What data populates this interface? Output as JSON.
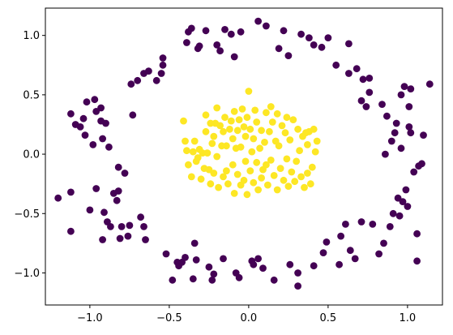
{
  "chart_data": {
    "type": "scatter",
    "title": "",
    "xlabel": "",
    "ylabel": "",
    "xlim": [
      -1.28,
      1.22
    ],
    "ylim": [
      -1.27,
      1.23
    ],
    "xticks": [
      -1.0,
      -0.5,
      0.0,
      0.5,
      1.0
    ],
    "yticks": [
      -1.0,
      -0.5,
      0.0,
      0.5,
      1.0
    ],
    "x_tick_labels": [
      "−1.0",
      "−0.5",
      "0.0",
      "0.5",
      "1.0"
    ],
    "y_tick_labels": [
      "−1.0",
      "−0.5",
      "0.0",
      "0.5",
      "1.0"
    ],
    "grid": false,
    "legend": "none",
    "colors": {
      "outer": "#440154",
      "inner": "#fde725"
    },
    "series": [
      {
        "color": "#440154",
        "points": [
          [
            -1.2,
            -0.37
          ],
          [
            -1.12,
            -0.65
          ],
          [
            -1.12,
            -0.32
          ],
          [
            -1.12,
            0.34
          ],
          [
            -1.09,
            0.25
          ],
          [
            -1.06,
            0.23
          ],
          [
            -1.04,
            0.3
          ],
          [
            -1.03,
            0.16
          ],
          [
            -1.02,
            0.44
          ],
          [
            -1.0,
            -0.47
          ],
          [
            -0.98,
            0.08
          ],
          [
            -0.97,
            0.46
          ],
          [
            -0.96,
            0.36
          ],
          [
            -0.96,
            -0.29
          ],
          [
            -0.93,
            0.28
          ],
          [
            -0.93,
            0.39
          ],
          [
            -0.92,
            -0.72
          ],
          [
            -0.92,
            0.13
          ],
          [
            -0.91,
            -0.49
          ],
          [
            -0.9,
            0.26
          ],
          [
            -0.89,
            -0.57
          ],
          [
            -0.88,
            0.06
          ],
          [
            -0.87,
            -0.61
          ],
          [
            -0.85,
            -0.33
          ],
          [
            -0.83,
            -0.39
          ],
          [
            -0.82,
            -0.31
          ],
          [
            -0.82,
            -0.11
          ],
          [
            -0.81,
            -0.71
          ],
          [
            -0.8,
            -0.61
          ],
          [
            -0.78,
            -0.16
          ],
          [
            -0.76,
            -0.69
          ],
          [
            -0.75,
            -0.6
          ],
          [
            -0.74,
            0.59
          ],
          [
            -0.73,
            0.33
          ],
          [
            -0.7,
            0.62
          ],
          [
            -0.68,
            -0.53
          ],
          [
            -0.66,
            -0.61
          ],
          [
            -0.66,
            0.68
          ],
          [
            -0.65,
            -0.72
          ],
          [
            -0.63,
            0.7
          ],
          [
            -0.58,
            0.62
          ],
          [
            -0.55,
            0.68
          ],
          [
            -0.54,
            0.75
          ],
          [
            -0.54,
            0.81
          ],
          [
            -0.52,
            -0.84
          ],
          [
            -0.48,
            -1.06
          ],
          [
            -0.45,
            -0.91
          ],
          [
            -0.44,
            -0.94
          ],
          [
            -0.42,
            -0.91
          ],
          [
            -0.4,
            -0.87
          ],
          [
            -0.39,
            0.94
          ],
          [
            -0.38,
            1.03
          ],
          [
            -0.36,
            1.06
          ],
          [
            -0.35,
            -1.05
          ],
          [
            -0.34,
            -0.75
          ],
          [
            -0.33,
            -0.89
          ],
          [
            -0.32,
            0.89
          ],
          [
            -0.31,
            0.91
          ],
          [
            -0.27,
            1.04
          ],
          [
            -0.25,
            -0.95
          ],
          [
            -0.23,
            -1.06
          ],
          [
            -0.22,
            -1.01
          ],
          [
            -0.2,
            0.92
          ],
          [
            -0.18,
            0.87
          ],
          [
            -0.16,
            -0.88
          ],
          [
            -0.15,
            1.05
          ],
          [
            -0.11,
            1.01
          ],
          [
            -0.09,
            0.82
          ],
          [
            -0.08,
            -1.0
          ],
          [
            -0.06,
            -1.04
          ],
          [
            -0.05,
            1.03
          ],
          [
            0.02,
            -0.9
          ],
          [
            0.03,
            -0.93
          ],
          [
            0.06,
            -0.88
          ],
          [
            0.06,
            1.12
          ],
          [
            0.09,
            -0.96
          ],
          [
            0.11,
            1.08
          ],
          [
            0.16,
            -1.06
          ],
          [
            0.19,
            0.89
          ],
          [
            0.22,
            1.04
          ],
          [
            0.25,
            0.83
          ],
          [
            0.26,
            -0.93
          ],
          [
            0.31,
            -1.11
          ],
          [
            0.31,
            -1.0
          ],
          [
            0.33,
            1.01
          ],
          [
            0.38,
            0.98
          ],
          [
            0.41,
            0.92
          ],
          [
            0.41,
            -0.94
          ],
          [
            0.46,
            0.9
          ],
          [
            0.47,
            -0.83
          ],
          [
            0.49,
            -0.74
          ],
          [
            0.5,
            0.98
          ],
          [
            0.55,
            0.75
          ],
          [
            0.57,
            -0.93
          ],
          [
            0.58,
            -0.69
          ],
          [
            0.61,
            -0.59
          ],
          [
            0.63,
            0.68
          ],
          [
            0.63,
            0.93
          ],
          [
            0.64,
            -0.81
          ],
          [
            0.67,
            -0.88
          ],
          [
            0.68,
            0.72
          ],
          [
            0.71,
            0.45
          ],
          [
            0.71,
            -0.57
          ],
          [
            0.72,
            0.63
          ],
          [
            0.74,
            0.4
          ],
          [
            0.76,
            0.52
          ],
          [
            0.76,
            0.64
          ],
          [
            0.78,
            -0.59
          ],
          [
            0.82,
            -0.84
          ],
          [
            0.84,
            0.42
          ],
          [
            0.85,
            -0.75
          ],
          [
            0.86,
            0.0
          ],
          [
            0.87,
            0.32
          ],
          [
            0.89,
            -0.61
          ],
          [
            0.9,
            0.11
          ],
          [
            0.91,
            -0.5
          ],
          [
            0.92,
            0.18
          ],
          [
            0.93,
            0.26
          ],
          [
            0.94,
            -0.37
          ],
          [
            0.95,
            -0.52
          ],
          [
            0.96,
            0.5
          ],
          [
            0.96,
            0.05
          ],
          [
            0.97,
            -0.4
          ],
          [
            0.98,
            0.57
          ],
          [
            0.99,
            -0.3
          ],
          [
            1.0,
            -0.44
          ],
          [
            1.01,
            0.23
          ],
          [
            1.01,
            0.4
          ],
          [
            1.02,
            0.55
          ],
          [
            1.02,
            0.18
          ],
          [
            1.04,
            -0.15
          ],
          [
            1.06,
            -0.67
          ],
          [
            1.06,
            -0.9
          ],
          [
            1.07,
            -0.1
          ],
          [
            1.09,
            -0.08
          ],
          [
            1.1,
            0.16
          ],
          [
            1.14,
            0.59
          ]
        ]
      },
      {
        "color": "#fde725",
        "points": [
          [
            -0.41,
            0.28
          ],
          [
            -0.4,
            0.11
          ],
          [
            -0.39,
            0.03
          ],
          [
            -0.38,
            -0.09
          ],
          [
            -0.36,
            -0.19
          ],
          [
            -0.35,
            0.02
          ],
          [
            -0.34,
            0.11
          ],
          [
            -0.33,
            -0.06
          ],
          [
            -0.32,
            -0.03
          ],
          [
            -0.31,
            0.04
          ],
          [
            -0.3,
            -0.21
          ],
          [
            -0.29,
            0.01
          ],
          [
            -0.28,
            -0.12
          ],
          [
            -0.27,
            0.19
          ],
          [
            -0.27,
            0.33
          ],
          [
            -0.26,
            0.01
          ],
          [
            -0.25,
            -0.13
          ],
          [
            -0.24,
            0.26
          ],
          [
            -0.24,
            -0.25
          ],
          [
            -0.23,
            0.09
          ],
          [
            -0.22,
            0.15
          ],
          [
            -0.22,
            -0.16
          ],
          [
            -0.21,
            0.26
          ],
          [
            -0.2,
            0.39
          ],
          [
            -0.2,
            -0.02
          ],
          [
            -0.19,
            -0.28
          ],
          [
            -0.18,
            0.24
          ],
          [
            -0.17,
            0.07
          ],
          [
            -0.16,
            -0.19
          ],
          [
            -0.16,
            0.19
          ],
          [
            -0.15,
            0.31
          ],
          [
            -0.14,
            -0.14
          ],
          [
            -0.14,
            0.07
          ],
          [
            -0.13,
            -0.25
          ],
          [
            -0.12,
            0.21
          ],
          [
            -0.11,
            0.28
          ],
          [
            -0.1,
            -0.09
          ],
          [
            -0.1,
            0.13
          ],
          [
            -0.09,
            -0.33
          ],
          [
            -0.09,
            0.36
          ],
          [
            -0.08,
            0.05
          ],
          [
            -0.07,
            0.2
          ],
          [
            -0.07,
            -0.17
          ],
          [
            -0.06,
            0.29
          ],
          [
            -0.05,
            -0.26
          ],
          [
            -0.05,
            0.06
          ],
          [
            -0.04,
            0.38
          ],
          [
            -0.03,
            -0.22
          ],
          [
            -0.03,
            0.23
          ],
          [
            -0.02,
            -0.06
          ],
          [
            -0.02,
            0.15
          ],
          [
            -0.01,
            -0.34
          ],
          [
            -0.01,
            0.31
          ],
          [
            0.0,
            0.53
          ],
          [
            0.01,
            -0.14
          ],
          [
            0.01,
            0.21
          ],
          [
            0.02,
            0.02
          ],
          [
            0.03,
            -0.24
          ],
          [
            0.03,
            0.13
          ],
          [
            0.04,
            0.37
          ],
          [
            0.05,
            -0.07
          ],
          [
            0.05,
            0.27
          ],
          [
            0.06,
            -0.3
          ],
          [
            0.07,
            0.05
          ],
          [
            0.08,
            -0.2
          ],
          [
            0.08,
            0.2
          ],
          [
            0.09,
            -0.13
          ],
          [
            0.1,
            0.1
          ],
          [
            0.11,
            -0.09
          ],
          [
            0.11,
            0.35
          ],
          [
            0.12,
            -0.26
          ],
          [
            0.13,
            0.19
          ],
          [
            0.14,
            0.4
          ],
          [
            0.14,
            -0.05
          ],
          [
            0.15,
            0.27
          ],
          [
            0.16,
            -0.18
          ],
          [
            0.17,
            0.11
          ],
          [
            0.18,
            -0.3
          ],
          [
            0.18,
            0.34
          ],
          [
            0.19,
            0.07
          ],
          [
            0.2,
            -0.12
          ],
          [
            0.21,
            0.24
          ],
          [
            0.22,
            -0.22
          ],
          [
            0.23,
            0.18
          ],
          [
            0.24,
            -0.04
          ],
          [
            0.24,
            0.31
          ],
          [
            0.25,
            -0.27
          ],
          [
            0.26,
            0.12
          ],
          [
            0.27,
            -0.15
          ],
          [
            0.28,
            0.29
          ],
          [
            0.29,
            -0.23
          ],
          [
            0.3,
            -0.06
          ],
          [
            0.31,
            0.21
          ],
          [
            0.32,
            0.03
          ],
          [
            0.33,
            -0.19
          ],
          [
            0.34,
            0.15
          ],
          [
            0.35,
            -0.28
          ],
          [
            0.36,
            0.18
          ],
          [
            0.37,
            -0.16
          ],
          [
            0.37,
            0.08
          ],
          [
            0.38,
            0.19
          ],
          [
            0.39,
            -0.25
          ],
          [
            0.4,
            -0.11
          ],
          [
            0.41,
            0.21
          ],
          [
            0.42,
            0.02
          ],
          [
            0.43,
            0.11
          ]
        ]
      }
    ]
  }
}
